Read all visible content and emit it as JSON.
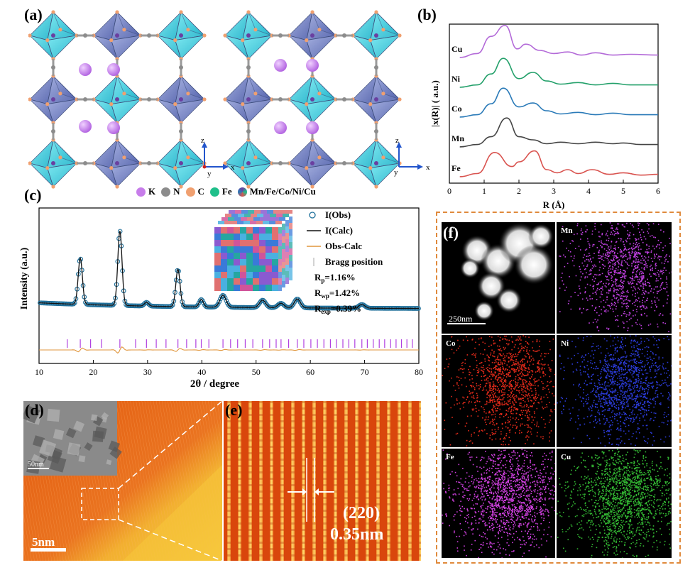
{
  "panel_labels": {
    "a": "(a)",
    "b": "(b)",
    "c": "(c)",
    "d": "(d)",
    "e": "(e)",
    "f": "(f)"
  },
  "structure_legend": [
    {
      "label": "K",
      "color": "#c77dea"
    },
    {
      "label": "N",
      "color": "#8c8c8c"
    },
    {
      "label": "C",
      "color": "#f0a070"
    },
    {
      "label": "Fe",
      "color": "#1fbf8a"
    },
    {
      "label": "Mn/Fe/Co/Ni/Cu",
      "color": "#6a3fa0"
    }
  ],
  "axes_a": {
    "left": {
      "z": "z",
      "x": "x",
      "y": "y"
    },
    "right": {
      "z": "z",
      "x": "x",
      "y": "y"
    }
  },
  "chart_data": [
    {
      "type": "line",
      "panel": "b",
      "xlabel": "R (Å)",
      "ylabel": "|x(R)| ( a.u.)",
      "xlim": [
        0,
        6
      ],
      "xticks": [
        "0",
        "1",
        "2",
        "3",
        "4",
        "5",
        "6"
      ],
      "series": [
        {
          "name": "Fe",
          "color": "#d9534f",
          "offset": 0,
          "x": [
            0.3,
            0.8,
            1.3,
            1.8,
            2.0,
            2.45,
            2.8,
            3.1,
            3.4,
            3.7,
            4.1,
            4.6,
            5.0,
            5.5,
            6.0
          ],
          "y": [
            0.05,
            0.25,
            1.6,
            0.7,
            1.0,
            1.7,
            0.5,
            0.3,
            0.5,
            0.25,
            0.5,
            0.2,
            0.3,
            0.15,
            0.2
          ]
        },
        {
          "name": "Mn",
          "color": "#444444",
          "offset": 1,
          "x": [
            0.3,
            0.8,
            1.2,
            1.65,
            2.0,
            2.4,
            2.8,
            3.2,
            3.7,
            4.2,
            4.7,
            5.0,
            5.5,
            6.0
          ],
          "y": [
            0.05,
            0.2,
            0.7,
            1.9,
            0.7,
            0.5,
            0.25,
            0.35,
            0.25,
            0.35,
            0.25,
            0.3,
            0.2,
            0.2
          ]
        },
        {
          "name": "Co",
          "color": "#2a7ab8",
          "offset": 2,
          "x": [
            0.3,
            0.8,
            1.2,
            1.55,
            2.0,
            2.4,
            2.8,
            3.2,
            3.7,
            4.2,
            4.7,
            5.2,
            6.0
          ],
          "y": [
            0.05,
            0.2,
            0.9,
            1.9,
            0.7,
            0.95,
            0.45,
            0.25,
            0.35,
            0.2,
            0.3,
            0.2,
            0.2
          ]
        },
        {
          "name": "Ni",
          "color": "#23a06a",
          "offset": 3,
          "x": [
            0.3,
            0.8,
            1.2,
            1.55,
            2.0,
            2.4,
            2.8,
            3.2,
            3.7,
            4.2,
            4.7,
            5.2,
            6.0
          ],
          "y": [
            0.05,
            0.2,
            0.9,
            1.9,
            0.6,
            1.0,
            0.45,
            0.25,
            0.35,
            0.2,
            0.3,
            0.2,
            0.2
          ]
        },
        {
          "name": "Cu",
          "color": "#b36ad8",
          "offset": 4,
          "x": [
            0.3,
            0.8,
            1.2,
            1.6,
            1.95,
            2.2,
            2.6,
            3.0,
            3.4,
            3.8,
            4.2,
            4.7,
            5.2,
            6.0
          ],
          "y": [
            0.05,
            0.3,
            1.4,
            2.1,
            0.6,
            0.9,
            0.5,
            0.3,
            0.4,
            0.2,
            0.35,
            0.2,
            0.25,
            0.2
          ]
        }
      ]
    },
    {
      "type": "line",
      "panel": "c",
      "xlabel": "2θ / degree",
      "ylabel": "Intensity (a.u.)",
      "xlim": [
        10,
        80
      ],
      "xticks": [
        "10",
        "20",
        "30",
        "40",
        "50",
        "60",
        "70",
        "80"
      ],
      "peaks": [
        {
          "x": 17.6,
          "height": 0.62
        },
        {
          "x": 24.9,
          "height": 1.0
        },
        {
          "x": 29.8,
          "height": 0.05
        },
        {
          "x": 35.6,
          "height": 0.5
        },
        {
          "x": 39.9,
          "height": 0.1
        },
        {
          "x": 43.9,
          "height": 0.16
        },
        {
          "x": 51.2,
          "height": 0.1
        },
        {
          "x": 54.6,
          "height": 0.06
        },
        {
          "x": 57.6,
          "height": 0.12
        },
        {
          "x": 69.5,
          "height": 0.05
        }
      ],
      "bragg_positions": [
        15.2,
        17.6,
        19.5,
        21.5,
        24.9,
        27.8,
        29.8,
        31.6,
        33.4,
        35.6,
        37.2,
        38.9,
        39.9,
        41.3,
        43.9,
        45.3,
        46.6,
        48.0,
        49.4,
        51.2,
        52.5,
        53.7,
        54.6,
        56.0,
        57.6,
        58.8,
        60.1,
        61.3,
        62.5,
        63.7,
        64.8,
        66.0,
        67.1,
        68.2,
        69.5,
        70.5,
        71.6,
        72.7,
        73.7,
        74.8,
        75.8,
        76.8,
        77.8,
        78.8
      ],
      "legend": {
        "obs": "I(Obs)",
        "calc": "I(Calc)",
        "diff": "Obs-Calc",
        "bragg": "Bragg position"
      },
      "stats": {
        "rp_label": "R",
        "rp_sub": "p",
        "rp_value": "=1.16%",
        "rwp_label": "R",
        "rwp_sub": "wp",
        "rwp_value": "=1.42%",
        "rexp_label": "R",
        "rexp_sub": "exp",
        "rexp_value": "=0.39%"
      }
    }
  ],
  "panel_d": {
    "scale_main": "5nm",
    "scale_inset": "50nm"
  },
  "panel_e": {
    "plane": "(220)",
    "spacing": "0.35nm"
  },
  "panel_f": {
    "scale": "250nm",
    "maps": [
      {
        "element": "Mn",
        "color": "#c040e0",
        "density": 1200
      },
      {
        "element": "Co",
        "color": "#e02a1a",
        "density": 1400
      },
      {
        "element": "Ni",
        "color": "#2b3bd8",
        "density": 1400
      },
      {
        "element": "Fe",
        "color": "#d040e0",
        "density": 1600
      },
      {
        "element": "Cu",
        "color": "#33b833",
        "density": 1800
      }
    ]
  }
}
